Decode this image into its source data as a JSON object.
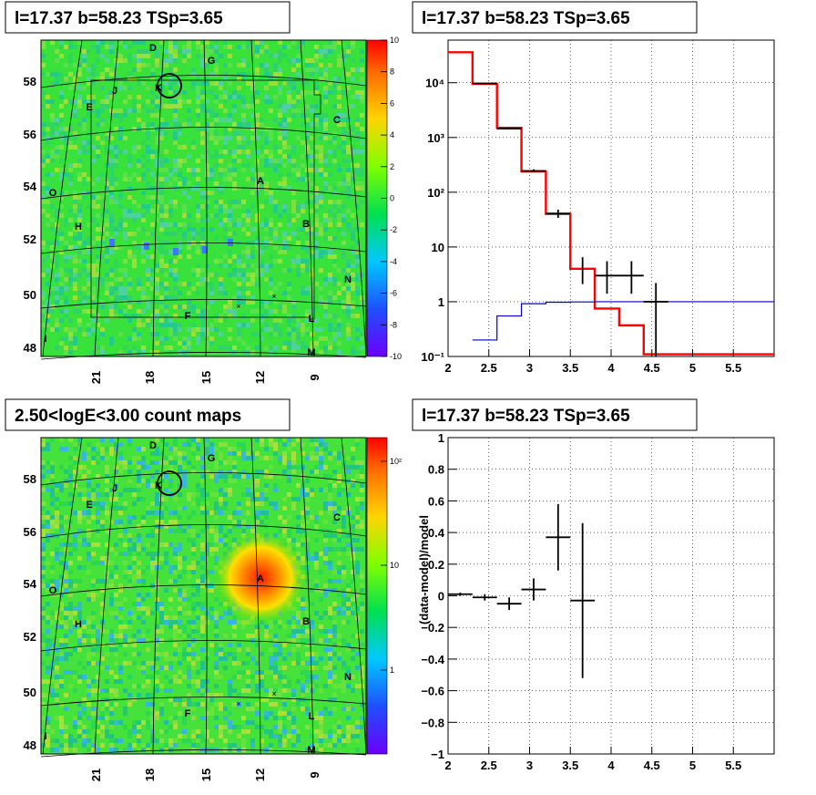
{
  "panels": {
    "tl_title": "l=17.37 b=58.23 TSp=3.65",
    "tr_title": "l=17.37 b=58.23 TSp=3.65",
    "bl_title": "2.50<logE<3.00 count maps",
    "br_title": "l=17.37 b=58.23 TSp=3.65"
  },
  "sky_map": {
    "x_ticks": [
      "21",
      "18",
      "15",
      "12",
      "9"
    ],
    "y_ticks": [
      "58",
      "56",
      "54",
      "52",
      "50",
      "48"
    ],
    "sources": [
      "D",
      "G",
      "J",
      "K",
      "E",
      "C",
      "A",
      "O",
      "H",
      "B",
      "N",
      "F",
      "L",
      "I",
      "M"
    ],
    "colors": {
      "background": "#2fe040",
      "hot": "#ff1a00",
      "cool": "#2a8cff"
    }
  },
  "residual_colorbar": {
    "labels": [
      "10",
      "8",
      "6",
      "4",
      "2",
      "0",
      "-2",
      "-4",
      "-6",
      "-8",
      "-10"
    ]
  },
  "counts_colorbar": {
    "labels": [
      "10²",
      "10",
      "1"
    ]
  },
  "chart_data": [
    {
      "type": "line",
      "title": "l=17.37 b=58.23 TSp=3.65",
      "xlabel": "",
      "ylabel": "",
      "xlim": [
        2,
        6
      ],
      "ylim": [
        0.1,
        60000
      ],
      "yscale": "log",
      "x_ticks": [
        "2",
        "2.5",
        "3",
        "3.5",
        "4",
        "4.5",
        "5",
        "5.5"
      ],
      "y_ticks": [
        "10⁻¹",
        "1",
        "10",
        "10²",
        "10³",
        "10⁴"
      ],
      "grid": true,
      "series": [
        {
          "color": "#ff0000",
          "step_edges": [
            2.0,
            2.3,
            2.6,
            2.9,
            3.2,
            3.5,
            3.8,
            4.1,
            4.4,
            6.0
          ],
          "values": [
            36000,
            9500,
            1500,
            240,
            40,
            4,
            0.75,
            0.37,
            0.11
          ]
        },
        {
          "color": "#0000cc",
          "step_edges": [
            2.3,
            2.6,
            2.9,
            3.2,
            3.5,
            3.8,
            4.1,
            4.4,
            6.0
          ],
          "values": [
            0.2,
            0.55,
            0.92,
            0.98,
            0.99,
            1.0,
            1.0,
            1.0
          ]
        },
        {
          "color": "#000000",
          "points": [
            {
              "x": 2.45,
              "xerr": 0.15,
              "y": 9700,
              "ylo": 9500,
              "yhi": 9900
            },
            {
              "x": 2.75,
              "xerr": 0.15,
              "y": 1450,
              "ylo": 1400,
              "yhi": 1500
            },
            {
              "x": 3.05,
              "xerr": 0.15,
              "y": 245,
              "ylo": 230,
              "yhi": 262
            },
            {
              "x": 3.35,
              "xerr": 0.15,
              "y": 41,
              "ylo": 34,
              "yhi": 48
            },
            {
              "x": 3.65,
              "xerr": 0.0,
              "y": 4,
              "ylo": 2.1,
              "yhi": 6.5
            },
            {
              "x": 3.95,
              "xerr": 0.15,
              "y": 3,
              "ylo": 1.4,
              "yhi": 5.5
            },
            {
              "x": 4.25,
              "xerr": 0.15,
              "y": 3,
              "ylo": 1.4,
              "yhi": 5.5
            },
            {
              "x": 4.55,
              "xerr": 0.15,
              "y": 1,
              "ylo": 0.1,
              "yhi": 2.2
            }
          ]
        }
      ]
    },
    {
      "type": "scatter",
      "title": "l=17.37 b=58.23 TSp=3.65",
      "xlabel": "",
      "ylabel": "(data-model)/model",
      "xlim": [
        2,
        6
      ],
      "ylim": [
        -1,
        1
      ],
      "x_ticks": [
        "2",
        "2.5",
        "3",
        "3.5",
        "4",
        "4.5",
        "5",
        "5.5"
      ],
      "y_ticks": [
        "1",
        "0.8",
        "0.6",
        "0.4",
        "0.2",
        "0",
        "−0.2",
        "−0.4",
        "−0.6",
        "−0.8",
        "−1"
      ],
      "grid": true,
      "series": [
        {
          "color": "#000000",
          "points": [
            {
              "x": 2.15,
              "xerr": 0.15,
              "y": 0.01,
              "err": 0.01
            },
            {
              "x": 2.45,
              "xerr": 0.15,
              "y": -0.01,
              "err": 0.02
            },
            {
              "x": 2.75,
              "xerr": 0.15,
              "y": -0.05,
              "err": 0.04
            },
            {
              "x": 3.05,
              "xerr": 0.15,
              "y": 0.04,
              "err": 0.07
            },
            {
              "x": 3.35,
              "xerr": 0.15,
              "y": 0.37,
              "err": 0.21
            },
            {
              "x": 3.65,
              "xerr": 0.15,
              "y": -0.03,
              "err": 0.49
            }
          ]
        }
      ]
    }
  ]
}
